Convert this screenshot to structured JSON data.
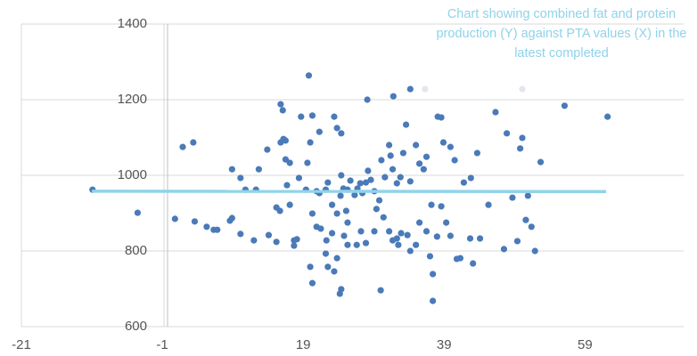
{
  "chart_data": {
    "type": "scatter",
    "title": "Chart showing combined fat and protein production (Y) against PTA values (X) in the latest completed",
    "title_color": "#8fd3ea",
    "xlim": [
      -21,
      73
    ],
    "xticks": [
      -21,
      -1,
      19,
      39,
      59
    ],
    "ylim": [
      600,
      1400
    ],
    "yticks": [
      600,
      800,
      1000,
      1200,
      1400
    ],
    "grid": true,
    "series": [
      {
        "color": "#4a7ab8",
        "x": [
          -10.9,
          -4.5,
          1.9,
          3.4,
          6.8,
          8.9,
          10.1,
          10.8,
          12.3,
          8.9,
          12.7,
          13.9,
          14.1,
          15.2,
          15.7,
          15.8,
          16.1,
          16.2,
          15.8,
          16.5,
          16.5,
          17.1,
          16.7,
          17.1,
          17.7,
          18.4,
          18.1,
          18.7,
          19.6,
          20.0,
          19.4,
          20.3,
          20.9,
          20.3,
          20.9,
          21.3,
          21.3,
          21.5,
          22.2,
          22.5,
          23.1,
          23.4,
          23.8,
          24.4,
          25.3,
          25.1,
          25.3,
          23.1,
          23.8,
          24.3,
          24.7,
          24.4,
          24.8,
          25.7,
          26.3,
          26.7,
          27.1,
          27.4,
          27.9,
          28.2,
          28.6,
          29.1,
          29.8,
          30.1,
          30.6,
          31.2,
          31.4,
          31.7,
          32.3,
          32.8,
          33.2,
          33.6,
          34.2,
          35.0,
          35.5,
          36.1,
          36.5,
          37.2,
          38.1,
          38.6,
          38.9,
          39.9,
          40.5,
          41.8,
          42.8,
          43.7,
          45.3,
          46.3,
          47.9,
          48.7,
          49.8,
          50.1,
          50.9,
          56.1,
          62.2,
          52.7,
          8.6,
          3.6,
          0.8,
          5.3,
          6.3,
          10.1,
          12.0,
          15.2,
          17.7,
          20.0,
          20.3,
          22.3,
          22.2,
          22.5,
          23.4,
          23.8,
          24.4,
          24.2,
          25.3,
          26.6,
          27.2,
          27.9,
          29.1,
          29.4,
          30.4,
          31.2,
          31.7,
          32.3,
          32.5,
          32.9,
          33.8,
          34.2,
          35.0,
          35.5,
          36.5,
          37.0,
          37.4,
          38.0,
          38.6,
          39.3,
          39.9,
          40.8,
          41.3,
          42.7,
          43.1,
          44.1,
          47.5,
          50.6,
          51.4,
          51.9,
          49.4,
          30.0,
          37.4,
          34.2,
          31.8,
          19.8,
          28.1
        ],
        "values": [
          962,
          901,
          1075,
          1087,
          856,
          1016,
          993,
          962,
          962,
          887,
          1016,
          1068,
          842,
          915,
          906,
          1188,
          1172,
          1096,
          1087,
          1092,
          1042,
          1033,
          974,
          922,
          828,
          993,
          831,
          1155,
          1033,
          1087,
          962,
          1158,
          958,
          899,
          864,
          1115,
          953,
          859,
          962,
          981,
          922,
          1155,
          1125,
          1111,
          962,
          906,
          875,
          847,
          899,
          946,
          965,
          1000,
          840,
          986,
          948,
          965,
          979,
          953,
          981,
          1012,
          988,
          958,
          934,
          1040,
          995,
          1080,
          1052,
          1016,
          979,
          995,
          1059,
          1134,
          984,
          1080,
          1031,
          1016,
          1049,
          922,
          1155,
          1153,
          1087,
          1075,
          1040,
          981,
          993,
          1059,
          922,
          1167,
          1111,
          941,
          1071,
          1099,
          946,
          1184,
          1155,
          1035,
          880,
          878,
          885,
          864,
          856,
          845,
          828,
          824,
          814,
          758,
          715,
          828,
          793,
          758,
          746,
          781,
          699,
          687,
          816,
          816,
          852,
          821,
          852,
          911,
          889,
          852,
          828,
          833,
          816,
          847,
          842,
          800,
          816,
          875,
          852,
          786,
          739,
          838,
          918,
          875,
          840,
          779,
          781,
          833,
          767,
          833,
          805,
          882,
          864,
          800,
          826,
          696,
          668,
          1228,
          1209,
          1264,
          1200
        ]
      },
      {
        "color": "#e3e6ee",
        "x": [
          36.3,
          50.1
        ],
        "values": [
          1228,
          1228
        ]
      },
      {
        "color": "#8fd3ea",
        "line": true,
        "x": [
          -11,
          62
        ],
        "values": [
          958,
          957
        ]
      }
    ]
  }
}
